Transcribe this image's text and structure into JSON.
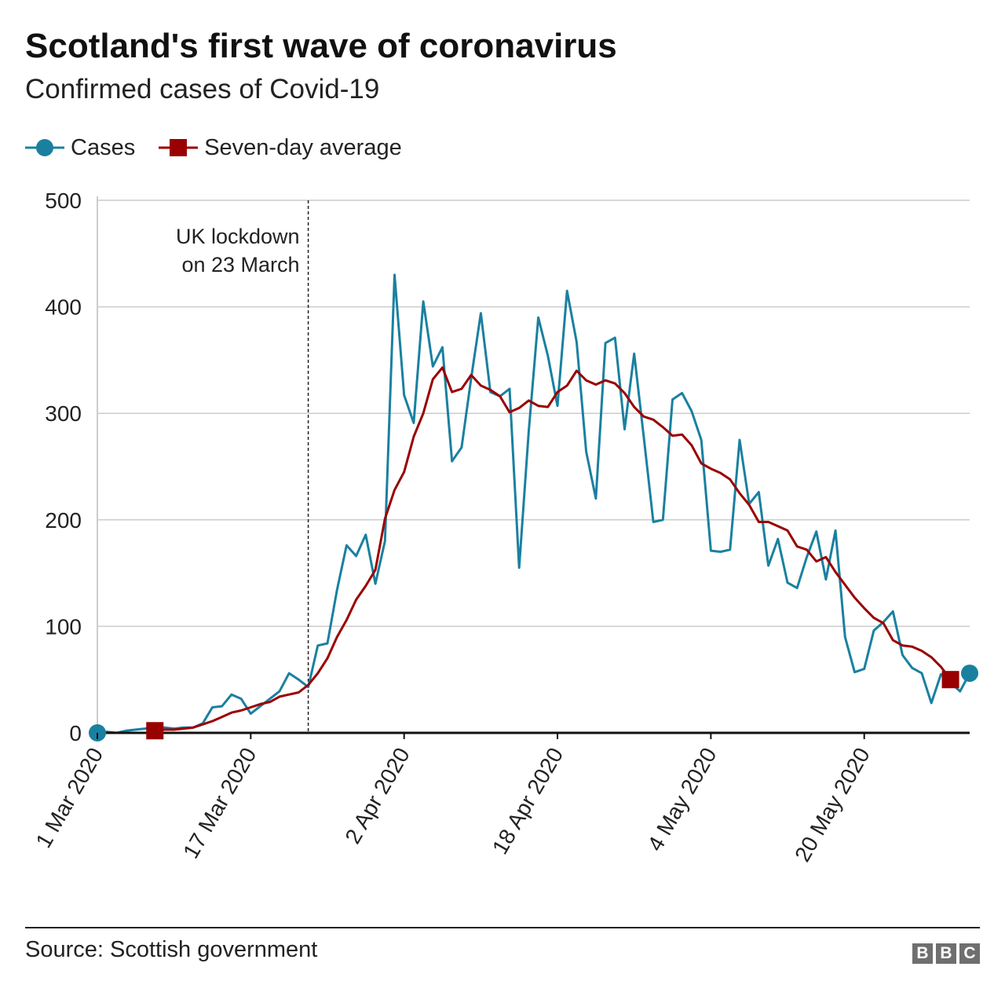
{
  "header": {
    "title": "Scotland's first wave of coronavirus",
    "subtitle": "Confirmed cases of Covid-19"
  },
  "legend": [
    {
      "name": "Cases",
      "color": "#1a80a0",
      "marker": "circle"
    },
    {
      "name": "Seven-day average",
      "color": "#990000",
      "marker": "square"
    }
  ],
  "footer": {
    "source": "Source: Scottish government",
    "logo": [
      "B",
      "B",
      "C"
    ]
  },
  "chart_data": {
    "type": "line",
    "title": "Scotland's first wave of coronavirus",
    "subtitle": "Confirmed cases of Covid-19",
    "xlabel": "",
    "ylabel": "",
    "ylim": [
      0,
      500
    ],
    "yticks": [
      0,
      100,
      200,
      300,
      400,
      500
    ],
    "xrange": [
      "2020-03-01",
      "2020-05-31"
    ],
    "xticks": [
      {
        "date": "2020-03-01",
        "label": "1 Mar 2020"
      },
      {
        "date": "2020-03-17",
        "label": "17 Mar 2020"
      },
      {
        "date": "2020-04-02",
        "label": "2 Apr 2020"
      },
      {
        "date": "2020-04-18",
        "label": "18 Apr 2020"
      },
      {
        "date": "2020-05-04",
        "label": "4 May 2020"
      },
      {
        "date": "2020-05-20",
        "label": "20 May 2020"
      }
    ],
    "grid": true,
    "legend_position": "top-left",
    "annotations": [
      {
        "date": "2020-03-23",
        "text": [
          "UK lockdown",
          "on 23 March"
        ],
        "style": "dashed-vertical-line"
      }
    ],
    "series": [
      {
        "name": "Cases",
        "color": "#1a80a0",
        "marker": "circle",
        "start_date": "2020-03-01",
        "values": [
          0,
          1,
          0,
          2,
          3,
          4,
          6,
          5,
          4,
          5,
          5,
          9,
          24,
          25,
          36,
          32,
          18,
          25,
          32,
          39,
          56,
          50,
          43,
          82,
          84,
          134,
          176,
          166,
          186,
          140,
          180,
          430,
          317,
          291,
          405,
          344,
          362,
          255,
          268,
          333,
          394,
          320,
          316,
          323,
          155,
          283,
          390,
          354,
          307,
          415,
          367,
          264,
          220,
          366,
          371,
          285,
          356,
          278,
          198,
          200,
          313,
          319,
          302,
          275,
          171,
          170,
          172,
          275,
          215,
          226,
          157,
          182,
          141,
          136,
          165,
          189,
          144,
          190,
          90,
          57,
          60,
          96,
          104,
          114,
          73,
          61,
          56,
          28,
          55,
          47,
          39,
          56
        ]
      },
      {
        "name": "Seven-day average",
        "color": "#990000",
        "marker": "square",
        "start_date": "2020-03-07",
        "values": [
          2,
          3,
          3,
          4,
          5,
          8,
          11,
          15,
          19,
          21,
          24,
          27,
          29,
          34,
          36,
          38,
          45,
          56,
          70,
          90,
          106,
          125,
          138,
          153,
          201,
          228,
          245,
          278,
          300,
          332,
          343,
          320,
          323,
          336,
          326,
          322,
          316,
          301,
          305,
          312,
          307,
          306,
          320,
          326,
          340,
          331,
          327,
          331,
          328,
          319,
          306,
          297,
          294,
          287,
          279,
          280,
          270,
          253,
          248,
          244,
          238,
          225,
          214,
          198,
          198,
          194,
          190,
          175,
          172,
          161,
          165,
          151,
          139,
          127,
          117,
          108,
          103,
          87,
          82,
          81,
          77,
          71,
          62,
          50
        ]
      }
    ]
  }
}
